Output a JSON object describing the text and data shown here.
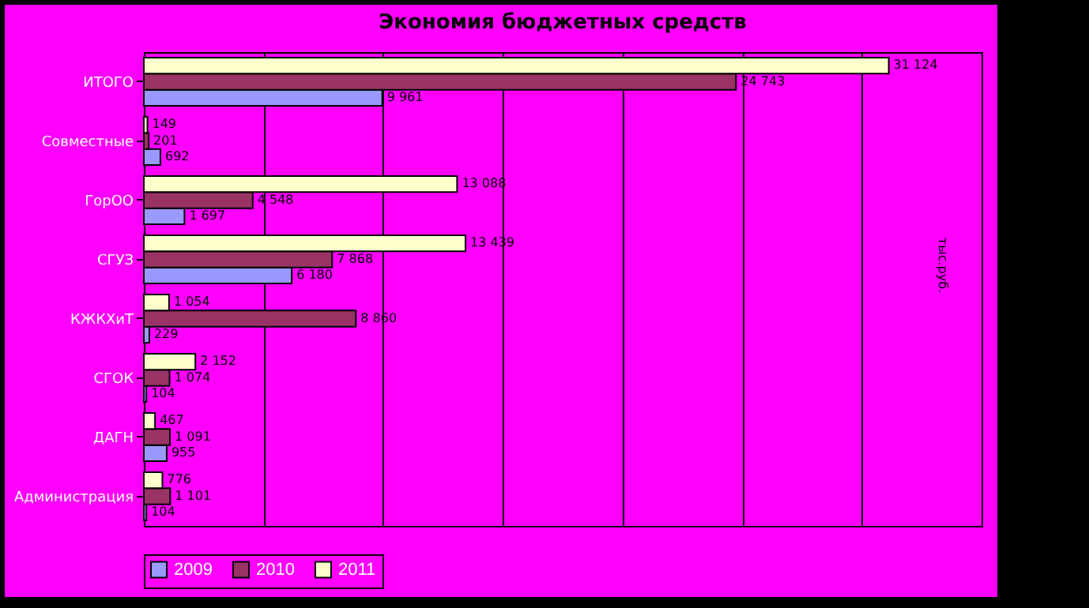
{
  "chart_data": {
    "type": "bar",
    "orientation": "horizontal",
    "title": "Экономия бюджетных средств",
    "categories": [
      "ИТОГО",
      "Совместные",
      "ГорОО",
      "СГУЗ",
      "КЖКХиТ",
      "СГОК",
      "ДАГН",
      "Администрация"
    ],
    "series": [
      {
        "name": "2009",
        "color": "#9999ff",
        "values": [
          9961,
          692,
          1697,
          6180,
          229,
          104,
          955,
          104
        ],
        "value_labels": [
          "9 961",
          "692",
          "1 697",
          "6 180",
          "229",
          "104",
          "955",
          "104"
        ]
      },
      {
        "name": "2010",
        "color": "#993366",
        "values": [
          24743,
          201,
          4548,
          7868,
          8860,
          1074,
          1091,
          1101
        ],
        "value_labels": [
          "24 743",
          "201",
          "4 548",
          "7 868",
          "8 860",
          "1 074",
          "1 091",
          "1 101"
        ]
      },
      {
        "name": "2011",
        "color": "#ffffcc",
        "values": [
          31124,
          149,
          13088,
          13439,
          1054,
          2152,
          467,
          776
        ],
        "value_labels": [
          "31 124",
          "149",
          "13 088",
          "13 439",
          "1 054",
          "2 152",
          "467",
          "776"
        ]
      }
    ],
    "xlim": [
      0,
      35000
    ],
    "xticks": [
      {
        "value": 0,
        "label": null
      },
      {
        "value": 5000,
        "label": null
      },
      {
        "value": 10000,
        "label": null
      },
      {
        "value": 15000,
        "label": null
      },
      {
        "value": 20000,
        "label": null
      },
      {
        "value": 25000,
        "label": null
      },
      {
        "value": 30000,
        "label": null
      },
      {
        "value": 35000,
        "label": null
      }
    ],
    "grid": "x",
    "tick_labels": "y",
    "legend": "bottom",
    "annotations": [
      "тыс.руб."
    ]
  }
}
